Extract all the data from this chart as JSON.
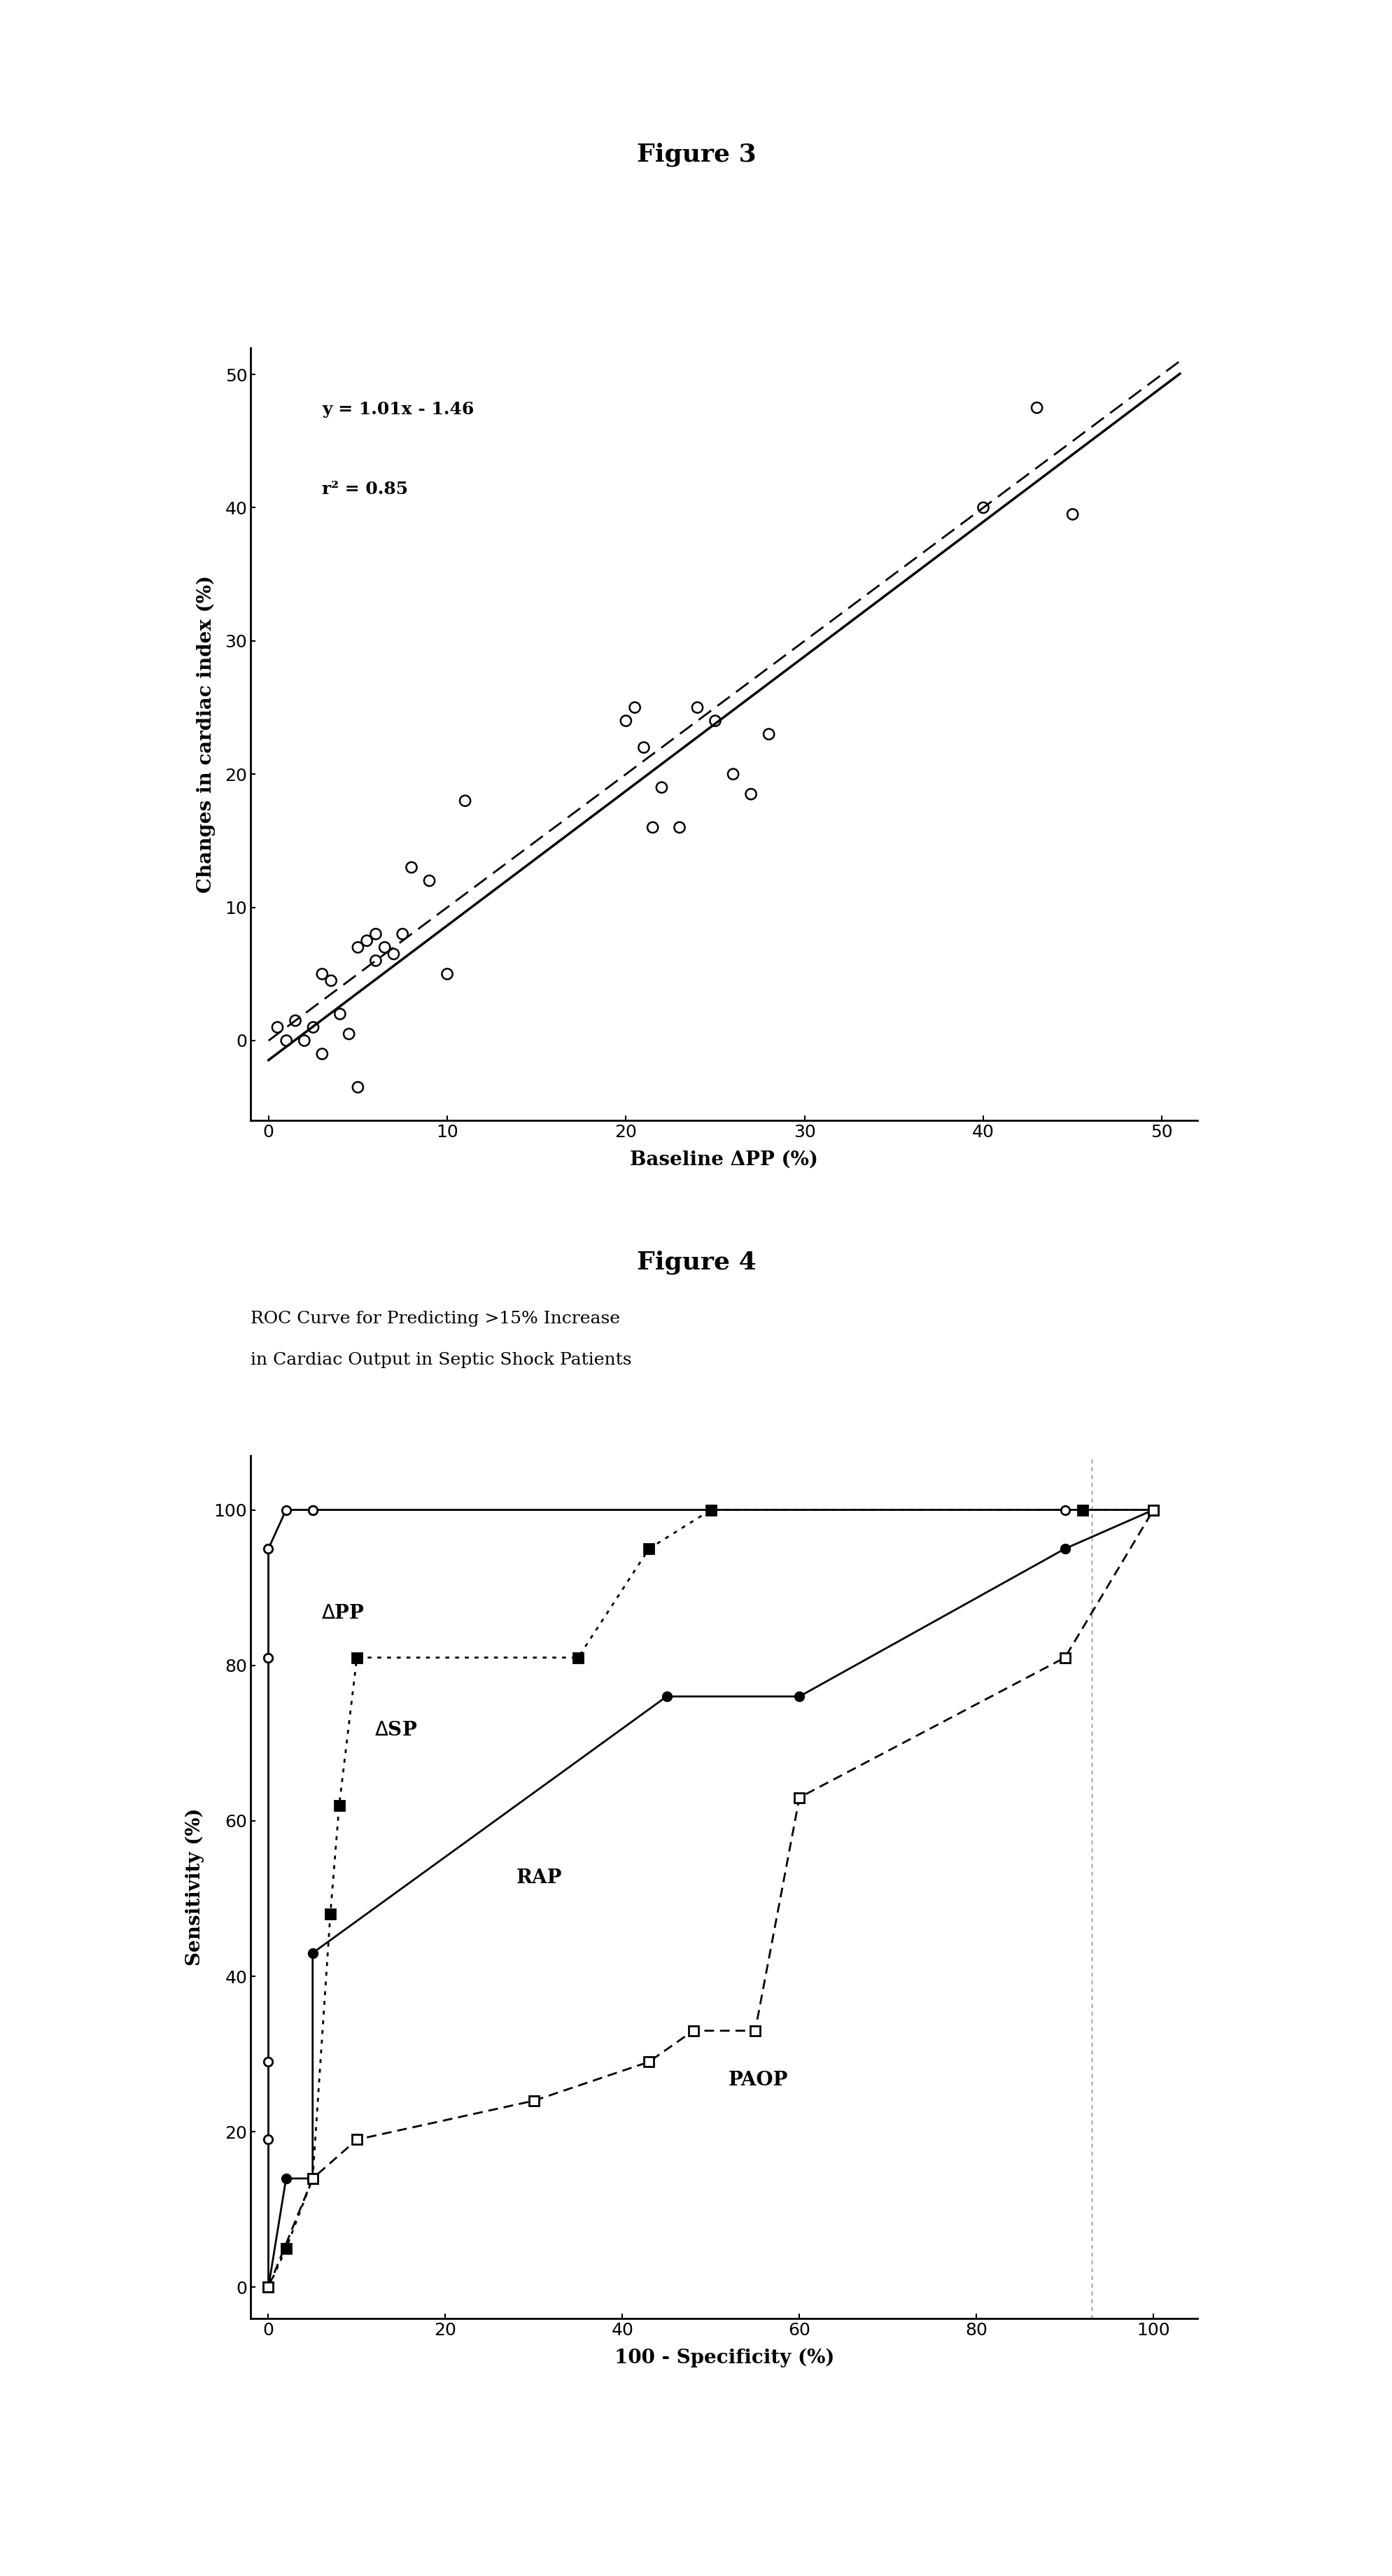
{
  "fig3_title": "Figure 3",
  "fig3_xlabel": "Baseline ΔPP (%)",
  "fig3_ylabel": "Changes in cardiac index (%)",
  "fig3_equation": "y = 1.01x - 1.46",
  "fig3_r2": "r² = 0.85",
  "fig3_xlim": [
    -1,
    52
  ],
  "fig3_ylim": [
    -6,
    52
  ],
  "fig3_xticks": [
    0,
    10,
    20,
    30,
    40,
    50
  ],
  "fig3_yticks": [
    0,
    10,
    20,
    30,
    40,
    50
  ],
  "fig3_scatter_x": [
    0.5,
    1.0,
    1.5,
    2.0,
    2.5,
    3.0,
    3.0,
    3.5,
    4.0,
    4.5,
    5.0,
    5.0,
    5.5,
    6.0,
    6.0,
    6.5,
    7.0,
    7.5,
    8.0,
    9.0,
    10.0,
    11.0,
    20.0,
    20.5,
    21.0,
    21.5,
    22.0,
    23.0,
    24.0,
    25.0,
    26.0,
    27.0,
    28.0,
    40.0,
    43.0,
    45.0
  ],
  "fig3_scatter_y": [
    1.0,
    0.0,
    1.5,
    0.0,
    1.0,
    5.0,
    -1.0,
    4.5,
    2.0,
    0.5,
    -3.5,
    7.0,
    7.5,
    8.0,
    6.0,
    7.0,
    6.5,
    8.0,
    13.0,
    12.0,
    5.0,
    18.0,
    24.0,
    25.0,
    22.0,
    16.0,
    19.0,
    16.0,
    25.0,
    24.0,
    20.0,
    18.5,
    23.0,
    40.0,
    47.5,
    39.5
  ],
  "fig3_reg_slope": 1.01,
  "fig3_reg_intercept": -1.46,
  "fig3_identity_slope": 1.0,
  "fig3_identity_intercept": 0.0,
  "fig4_title": "Figure 4",
  "fig4_subtitle_line1": "ROC Curve for Predicting >15% Increase",
  "fig4_subtitle_line2": "in Cardiac Output in Septic Shock Patients",
  "fig4_xlabel": "100 - Specificity (%)",
  "fig4_ylabel": "Sensitivity (%)",
  "fig4_xlim": [
    -2,
    105
  ],
  "fig4_ylim": [
    -4,
    107
  ],
  "fig4_xticks": [
    0,
    20,
    40,
    60,
    80,
    100
  ],
  "fig4_yticks": [
    0,
    20,
    40,
    60,
    80,
    100
  ],
  "roc_APP_x": [
    0,
    0,
    0,
    0,
    0,
    2,
    5,
    5,
    90,
    100
  ],
  "roc_APP_y": [
    0,
    19,
    29,
    81,
    95,
    100,
    100,
    100,
    100,
    100
  ],
  "roc_DSP_x": [
    0,
    2,
    5,
    7,
    8,
    10,
    35,
    43,
    50,
    92,
    100
  ],
  "roc_DSP_y": [
    0,
    5,
    14,
    48,
    62,
    81,
    81,
    95,
    100,
    100,
    100
  ],
  "roc_RAP_x": [
    0,
    2,
    5,
    5,
    45,
    60,
    90,
    100
  ],
  "roc_RAP_y": [
    0,
    14,
    14,
    43,
    76,
    76,
    95,
    100
  ],
  "roc_PAOP_x": [
    0,
    5,
    10,
    30,
    43,
    48,
    55,
    60,
    90,
    100
  ],
  "roc_PAOP_y": [
    0,
    14,
    19,
    24,
    29,
    33,
    33,
    63,
    81,
    100
  ],
  "background": "#ffffff",
  "line_color": "#000000",
  "annotation_fontsize": 18,
  "title_fontsize": 26,
  "subtitle_fontsize": 18,
  "label_fontsize": 20,
  "tick_fontsize": 18
}
